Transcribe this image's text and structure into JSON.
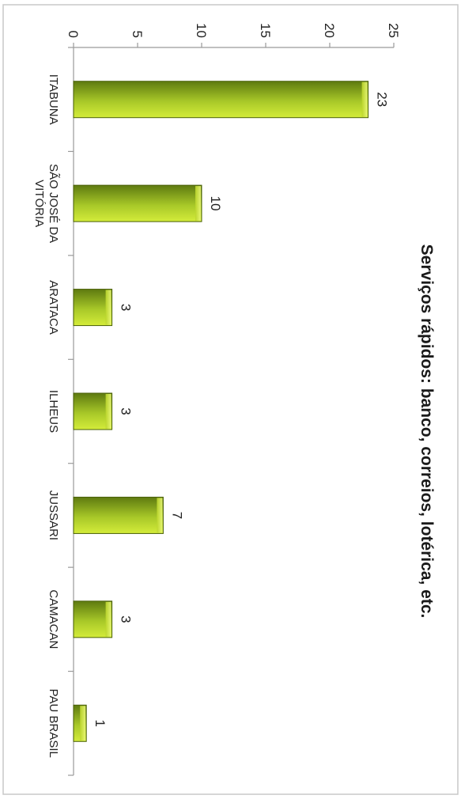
{
  "chart_data": {
    "type": "bar",
    "orientation": "vertical (page rotated 90° clockwise)",
    "title": "Serviços rápidos: banco, correios, lotérica, etc.",
    "xlabel": "",
    "ylabel": "",
    "categories": [
      "ITABUNA",
      "SÃO JOSÉ DA VITÓRIA",
      "ARATACA",
      "ILHEUS",
      "JUSSARI",
      "CAMACAN",
      "PAU BRASIL"
    ],
    "category_lines": [
      [
        "ITABUNA"
      ],
      [
        "SÃO JOSÉ DA",
        "VITÓRIA"
      ],
      [
        "ARATACA"
      ],
      [
        "ILHEUS"
      ],
      [
        "JUSSARI"
      ],
      [
        "CAMACAN"
      ],
      [
        "PAU BRASIL"
      ]
    ],
    "values": [
      23,
      10,
      3,
      3,
      7,
      3,
      1
    ],
    "value_labels": [
      "23",
      "10",
      "3",
      "3",
      "7",
      "3",
      "1"
    ],
    "ylim": [
      0,
      25
    ],
    "yticks": [
      0,
      5,
      10,
      15,
      20,
      25
    ],
    "ytick_labels": [
      "0",
      "5",
      "10",
      "15",
      "20",
      "25"
    ],
    "grid": false,
    "legend": "none",
    "colors": {
      "bar_light": "#d4ec3a",
      "bar_mid": "#a8c828",
      "bar_dark": "#5e7a10",
      "bar_edge": "#4a6008",
      "axis": "#9a9a9a",
      "frame": "#c8c8c8"
    }
  }
}
